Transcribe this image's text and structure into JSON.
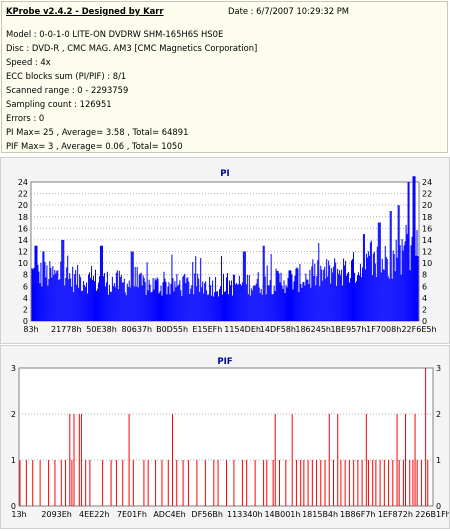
{
  "header": {
    "title": "KProbe v2.4.2 - Designed by Karr",
    "date": "Date : 6/7/2007 10:29:32 PM",
    "lines": [
      "Model : 0-0-1-0 LITE-ON DVDRW SHM-165H6S HS0E",
      "Disc : DVD-R , CMC MAG. AM3 [CMC Magnetics Corporation]",
      "Speed : 4x",
      "ECC blocks sum (PI/PIF) : 8/1",
      "Scanned range : 0 - 2293759",
      "Sampling count : 126951",
      "Errors : 0",
      "PI Max= 25 , Average= 3.58 , Total= 64891",
      "PIF Max= 3 , Average= 0.06 , Total= 1050"
    ]
  },
  "colors": {
    "pi": "#0000ff",
    "pif": "#ff0000",
    "title": "#0000aa",
    "bg": "#ffffff"
  },
  "chart_data": [
    {
      "type": "bar",
      "title": "PI",
      "ylim": [
        0,
        24
      ],
      "yticks": [
        "0",
        "2",
        "4",
        "6",
        "8",
        "10",
        "12",
        "14",
        "16",
        "18",
        "20",
        "22",
        "24"
      ],
      "xticks": [
        "83h",
        "21778h",
        "50E38h",
        "80637h",
        "B0D55h",
        "E15EFh",
        "1154DEh",
        "14DF58h",
        "186245h",
        "1BE957h",
        "1F7008h",
        "22F6E5h"
      ],
      "profile": [
        [
          0,
          10
        ],
        [
          0.05,
          9.5
        ],
        [
          0.15,
          8.5
        ],
        [
          0.3,
          7.5
        ],
        [
          0.45,
          7.5
        ],
        [
          0.6,
          8
        ],
        [
          0.7,
          9
        ],
        [
          0.8,
          10.5
        ],
        [
          0.9,
          12
        ],
        [
          0.96,
          14
        ],
        [
          1.0,
          16
        ]
      ],
      "peaks": [
        [
          0.01,
          13
        ],
        [
          0.03,
          12
        ],
        [
          0.08,
          14
        ],
        [
          0.18,
          13
        ],
        [
          0.26,
          12
        ],
        [
          0.55,
          12
        ],
        [
          0.6,
          13
        ],
        [
          0.86,
          15
        ],
        [
          0.9,
          17
        ],
        [
          0.93,
          19
        ],
        [
          0.95,
          20
        ],
        [
          0.975,
          24
        ],
        [
          0.99,
          25
        ]
      ],
      "grid": true
    },
    {
      "type": "bar",
      "title": "PIF",
      "ylim": [
        0,
        3
      ],
      "yticks": [
        "0",
        "1",
        "2",
        "3"
      ],
      "xticks": [
        "13h",
        "2093Eh",
        "4EE22h",
        "7E01Fh",
        "ADC4Eh",
        "DF56Bh",
        "113340h",
        "14B001h",
        "1815B4h",
        "1B86F7h",
        "1EF872h",
        "226B1Fh"
      ],
      "twos": [
        0.12,
        0.13,
        0.145,
        0.15,
        0.265,
        0.37,
        0.62,
        0.66,
        0.75,
        0.77,
        0.84,
        0.915,
        0.935,
        0.96
      ],
      "threes": [
        0.985
      ],
      "ones": [
        0.0,
        0.015,
        0.03,
        0.05,
        0.07,
        0.085,
        0.1,
        0.11,
        0.125,
        0.16,
        0.17,
        0.2,
        0.22,
        0.235,
        0.25,
        0.275,
        0.3,
        0.31,
        0.33,
        0.345,
        0.36,
        0.38,
        0.395,
        0.41,
        0.43,
        0.45,
        0.47,
        0.48,
        0.5,
        0.52,
        0.54,
        0.55,
        0.57,
        0.59,
        0.6,
        0.615,
        0.63,
        0.645,
        0.67,
        0.68,
        0.69,
        0.7,
        0.71,
        0.72,
        0.73,
        0.74,
        0.76,
        0.78,
        0.79,
        0.8,
        0.81,
        0.82,
        0.83,
        0.845,
        0.855,
        0.865,
        0.875,
        0.885,
        0.895,
        0.905,
        0.92,
        0.93,
        0.945,
        0.955,
        0.965,
        0.975,
        0.99
      ],
      "grid": true
    }
  ]
}
